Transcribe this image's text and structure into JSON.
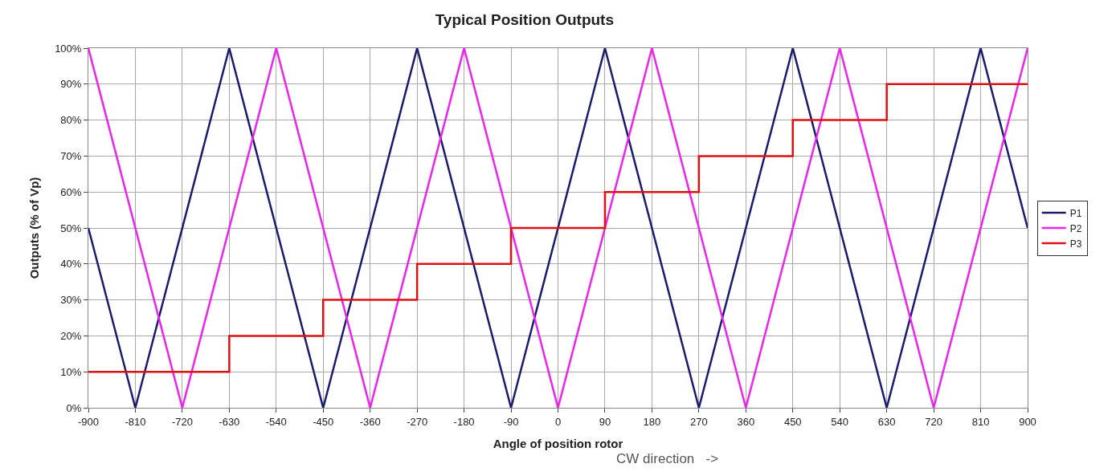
{
  "chart_data": {
    "type": "line",
    "title": "Typical Position Outputs",
    "xlabel": "Angle of position rotor",
    "ylabel": "Outputs (% of Vp)",
    "annotations": [
      "CW direction   ->"
    ],
    "series": [
      {
        "name": "P1",
        "color": "#1a1a6e",
        "x": [
          -900,
          -810,
          -630,
          -450,
          -270,
          -90,
          90,
          270,
          450,
          630,
          810,
          900
        ],
        "values": [
          50,
          0,
          100,
          0,
          100,
          0,
          100,
          0,
          100,
          0,
          100,
          50
        ]
      },
      {
        "name": "P2",
        "color": "#ee22ee",
        "x": [
          -900,
          -720,
          -540,
          -360,
          -180,
          0,
          180,
          360,
          540,
          720,
          900
        ],
        "values": [
          100,
          0,
          100,
          0,
          100,
          0,
          100,
          0,
          100,
          0,
          100
        ]
      },
      {
        "name": "P3",
        "color": "#dd1111",
        "type": "step",
        "x": [
          -900,
          -630,
          -450,
          -270,
          -90,
          90,
          270,
          450,
          630,
          900
        ],
        "values": [
          10,
          20,
          30,
          40,
          50,
          60,
          70,
          80,
          90,
          90
        ]
      }
    ],
    "xlim": [
      -900,
      900
    ],
    "xticks": [
      -900,
      -810,
      -720,
      -630,
      -540,
      -450,
      -360,
      -270,
      -180,
      -90,
      0,
      90,
      180,
      270,
      360,
      450,
      540,
      630,
      720,
      810,
      900
    ],
    "ylim": [
      0,
      100
    ],
    "yticks": [
      {
        "value": 0,
        "label": "0%"
      },
      {
        "value": 10,
        "label": "10%"
      },
      {
        "value": 20,
        "label": "20%"
      },
      {
        "value": 30,
        "label": "30%"
      },
      {
        "value": 40,
        "label": "40%"
      },
      {
        "value": 50,
        "label": "50%"
      },
      {
        "value": 60,
        "label": "60%"
      },
      {
        "value": 70,
        "label": "70%"
      },
      {
        "value": 80,
        "label": "80%"
      },
      {
        "value": 90,
        "label": "90%"
      },
      {
        "value": 100,
        "label": "100%"
      }
    ],
    "grid": true,
    "legend": "right",
    "marker": "none",
    "line_style": "solid"
  }
}
